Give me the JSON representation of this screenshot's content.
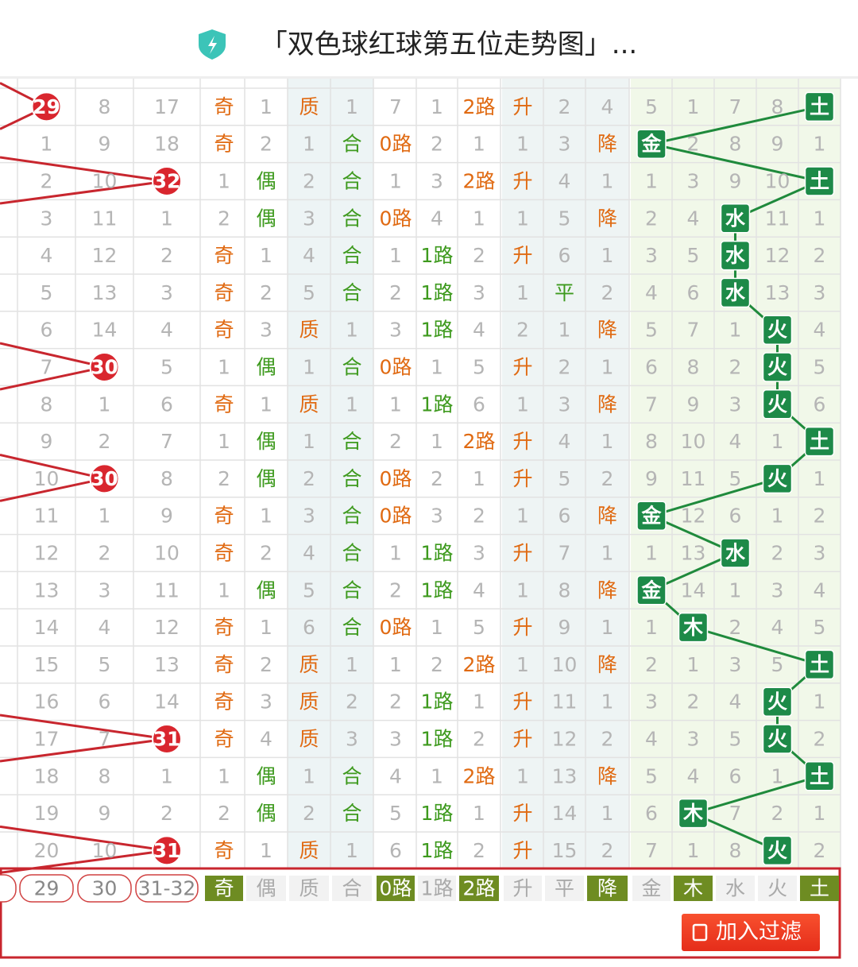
{
  "header": {
    "title": "「双色球红球第五位走势图」..."
  },
  "rows": [
    {
      "cells": [
        "29",
        "8",
        "17",
        "奇",
        "1",
        "质",
        "1",
        "7",
        "1",
        "2路",
        "升",
        "2",
        "4",
        "5",
        "1",
        "7",
        "8",
        "土"
      ],
      "hit": 0
    },
    {
      "cells": [
        "1",
        "9",
        "18",
        "奇",
        "2",
        "1",
        "合",
        "0路",
        "2",
        "1",
        "1",
        "3",
        "降",
        "金",
        "2",
        "8",
        "9",
        "1"
      ]
    },
    {
      "cells": [
        "2",
        "10",
        "32",
        "1",
        "偶",
        "2",
        "合",
        "1",
        "3",
        "2路",
        "升",
        "4",
        "1",
        "1",
        "3",
        "9",
        "10",
        "土"
      ],
      "hit": 2
    },
    {
      "cells": [
        "3",
        "11",
        "1",
        "2",
        "偶",
        "3",
        "合",
        "0路",
        "4",
        "1",
        "1",
        "5",
        "降",
        "2",
        "4",
        "水",
        "11",
        "1"
      ]
    },
    {
      "cells": [
        "4",
        "12",
        "2",
        "奇",
        "1",
        "4",
        "合",
        "1",
        "1路",
        "2",
        "升",
        "6",
        "1",
        "3",
        "5",
        "水",
        "12",
        "2"
      ]
    },
    {
      "cells": [
        "5",
        "13",
        "3",
        "奇",
        "2",
        "5",
        "合",
        "2",
        "1路",
        "3",
        "1",
        "平",
        "2",
        "4",
        "6",
        "水",
        "13",
        "3"
      ]
    },
    {
      "cells": [
        "6",
        "14",
        "4",
        "奇",
        "3",
        "质",
        "1",
        "3",
        "1路",
        "4",
        "2",
        "1",
        "降",
        "5",
        "7",
        "1",
        "火",
        "4"
      ]
    },
    {
      "cells": [
        "7",
        "30",
        "5",
        "1",
        "偶",
        "1",
        "合",
        "0路",
        "1",
        "5",
        "升",
        "2",
        "1",
        "6",
        "8",
        "2",
        "火",
        "5"
      ],
      "hit": 1
    },
    {
      "cells": [
        "8",
        "1",
        "6",
        "奇",
        "1",
        "质",
        "1",
        "1",
        "1路",
        "6",
        "1",
        "3",
        "降",
        "7",
        "9",
        "3",
        "火",
        "6"
      ]
    },
    {
      "cells": [
        "9",
        "2",
        "7",
        "1",
        "偶",
        "1",
        "合",
        "2",
        "1",
        "2路",
        "升",
        "4",
        "1",
        "8",
        "10",
        "4",
        "1",
        "土"
      ]
    },
    {
      "cells": [
        "10",
        "30",
        "8",
        "2",
        "偶",
        "2",
        "合",
        "0路",
        "2",
        "1",
        "升",
        "5",
        "2",
        "9",
        "11",
        "5",
        "火",
        "1"
      ],
      "hit": 1
    },
    {
      "cells": [
        "11",
        "1",
        "9",
        "奇",
        "1",
        "3",
        "合",
        "0路",
        "3",
        "2",
        "1",
        "6",
        "降",
        "金",
        "12",
        "6",
        "1",
        "2"
      ]
    },
    {
      "cells": [
        "12",
        "2",
        "10",
        "奇",
        "2",
        "4",
        "合",
        "1",
        "1路",
        "3",
        "升",
        "7",
        "1",
        "1",
        "13",
        "水",
        "2",
        "3"
      ]
    },
    {
      "cells": [
        "13",
        "3",
        "11",
        "1",
        "偶",
        "5",
        "合",
        "2",
        "1路",
        "4",
        "1",
        "8",
        "降",
        "金",
        "14",
        "1",
        "3",
        "4"
      ]
    },
    {
      "cells": [
        "14",
        "4",
        "12",
        "奇",
        "1",
        "6",
        "合",
        "0路",
        "1",
        "5",
        "升",
        "9",
        "1",
        "1",
        "木",
        "2",
        "4",
        "5"
      ]
    },
    {
      "cells": [
        "15",
        "5",
        "13",
        "奇",
        "2",
        "质",
        "1",
        "1",
        "2",
        "2路",
        "1",
        "10",
        "降",
        "2",
        "1",
        "3",
        "5",
        "土"
      ]
    },
    {
      "cells": [
        "16",
        "6",
        "14",
        "奇",
        "3",
        "质",
        "2",
        "2",
        "1路",
        "1",
        "升",
        "11",
        "1",
        "3",
        "2",
        "4",
        "火",
        "1"
      ]
    },
    {
      "cells": [
        "17",
        "7",
        "31",
        "奇",
        "4",
        "质",
        "3",
        "3",
        "1路",
        "2",
        "升",
        "12",
        "2",
        "4",
        "3",
        "5",
        "火",
        "2"
      ],
      "hit": 2
    },
    {
      "cells": [
        "18",
        "8",
        "1",
        "1",
        "偶",
        "1",
        "合",
        "4",
        "1",
        "2路",
        "1",
        "13",
        "降",
        "5",
        "4",
        "6",
        "1",
        "土"
      ]
    },
    {
      "cells": [
        "19",
        "9",
        "2",
        "2",
        "偶",
        "2",
        "合",
        "5",
        "1路",
        "1",
        "升",
        "14",
        "1",
        "6",
        "木",
        "7",
        "2",
        "1"
      ]
    },
    {
      "cells": [
        "20",
        "10",
        "31",
        "奇",
        "1",
        "质",
        "1",
        "6",
        "1路",
        "2",
        "升",
        "15",
        "2",
        "7",
        "1",
        "8",
        "火",
        "2"
      ],
      "hit": 2
    }
  ],
  "footer": {
    "filters": [
      {
        "label": "29",
        "on": false
      },
      {
        "label": "30",
        "on": false
      },
      {
        "label": "31-32",
        "on": false
      },
      {
        "label": "奇",
        "on": true
      },
      {
        "label": "偶",
        "on": false
      },
      {
        "label": "质",
        "on": false
      },
      {
        "label": "合",
        "on": false
      },
      {
        "label": "0路",
        "on": true
      },
      {
        "label": "1路",
        "on": false
      },
      {
        "label": "2路",
        "on": true
      },
      {
        "label": "升",
        "on": false
      },
      {
        "label": "平",
        "on": false
      },
      {
        "label": "降",
        "on": true
      },
      {
        "label": "金",
        "on": false
      },
      {
        "label": "木",
        "on": true
      },
      {
        "label": "水",
        "on": false
      },
      {
        "label": "火",
        "on": false
      },
      {
        "label": "土",
        "on": true
      }
    ],
    "button": "加入过滤"
  }
}
